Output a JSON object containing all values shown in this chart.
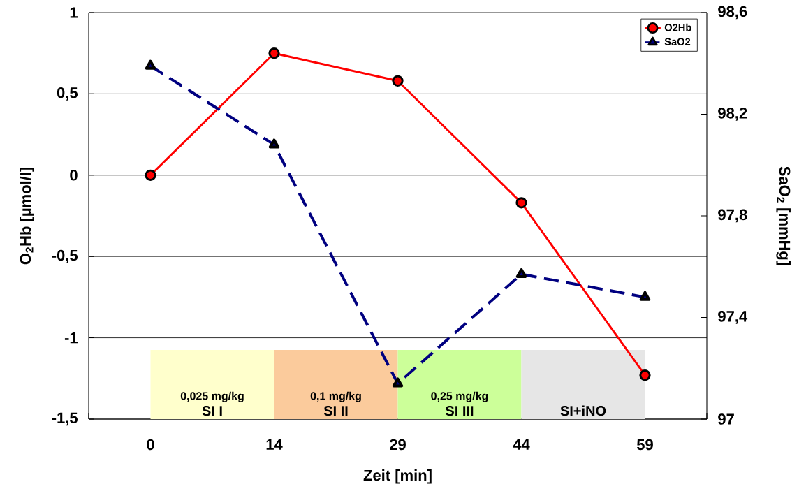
{
  "chart_data": {
    "type": "line",
    "xlabel": "Zeit [min]",
    "ylabel": "O$_{2}$Hb [µmol/l]",
    "y2label": "SaO$_{2}$ [mmHg]",
    "categories": [
      "0",
      "14",
      "29",
      "44",
      "59"
    ],
    "series": [
      {
        "name": "O2Hb",
        "color": "#ff0000",
        "values": [
          0,
          0.75,
          0.58,
          -0.17,
          -1.23
        ],
        "marker": "circle",
        "line_style": "solid"
      },
      {
        "name": "SaO2",
        "color": "#000080",
        "values": [
          98.39,
          98.08,
          97.14,
          97.57,
          97.48
        ],
        "marker": "triangle",
        "line_style": "dashed",
        "axis": "y2"
      }
    ],
    "ylim": [
      -1.5,
      1
    ],
    "yticks": [
      {
        "value": -1.5,
        "label": "-1,5"
      },
      -1,
      {
        "value": -0.5,
        "label": "-0,5"
      },
      0,
      {
        "value": 0.5,
        "label": "0,5"
      },
      1
    ],
    "y2lim": [
      97,
      98.6
    ],
    "y2ticks": [
      97,
      {
        "value": 97.4,
        "label": "97,4"
      },
      {
        "value": 97.8,
        "label": "97,8"
      },
      {
        "value": 98.2,
        "label": "98,2"
      },
      {
        "value": 98.6,
        "label": "98,6"
      }
    ],
    "bands": [
      {
        "axis": "x",
        "from": "0",
        "to": "14",
        "label": "SI I",
        "color": "#ffffcc"
      },
      {
        "axis": "x",
        "from": "14",
        "to": "29",
        "label": "SI II",
        "color": "#fbcb9c"
      },
      {
        "axis": "x",
        "from": "29",
        "to": "44",
        "label": "SI III",
        "color": "#ccff99"
      },
      {
        "axis": "x",
        "from": "44",
        "to": "59",
        "label": "SI+iNO",
        "color": "#e6e6e6"
      }
    ],
    "annotations": [
      "0,025 mg/kg",
      "0,1 mg/kg",
      "0,25 mg/kg"
    ],
    "grid": "y",
    "legend": "top right"
  }
}
